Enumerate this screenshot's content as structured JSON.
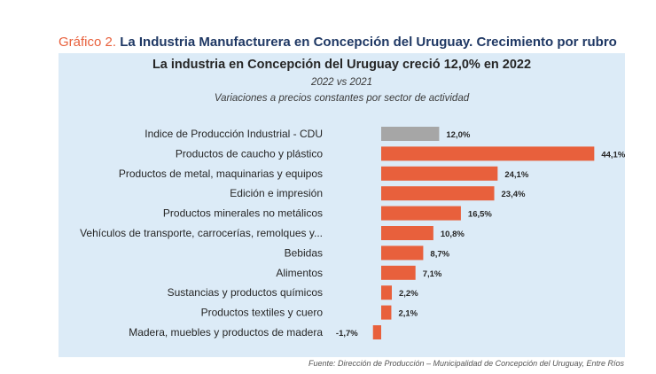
{
  "heading": {
    "prefix": "Gráfico 2.",
    "text": "La Industria Manufacturera en Concepción del Uruguay. Crecimiento por rubro"
  },
  "source": "Fuente: Dirección de Producción – Municipalidad de Concepción del Uruguay, Entre Ríos",
  "colors": {
    "accent": "#e8603c",
    "total": "#a6a6a6",
    "panel": "#dcebf7",
    "heading": "#1f3864"
  },
  "chart_data": {
    "type": "bar",
    "orientation": "horizontal",
    "title": "La industria en Concepción del Uruguay creció 12,0% en 2022",
    "subtitle": "2022 vs 2021",
    "subtitle2": "Variaciones a precios constantes por sector de actividad",
    "categories": [
      "Indice de Producción Industrial - CDU",
      "Productos de caucho y plástico",
      "Productos de metal, maquinarias y equipos",
      "Edición e impresión",
      "Productos minerales no metálicos",
      "Vehículos de transporte, carrocerías, remolques y...",
      "Bebidas",
      "Alimentos",
      "Sustancias y productos químicos",
      "Productos textiles y cuero",
      "Madera, muebles y productos de madera"
    ],
    "values": [
      12.0,
      44.1,
      24.1,
      23.4,
      16.5,
      10.8,
      8.7,
      7.1,
      2.2,
      2.1,
      -1.7
    ],
    "value_labels": [
      "12,0%",
      "44,1%",
      "24,1%",
      "23,4%",
      "16,5%",
      "10,8%",
      "8,7%",
      "7,1%",
      "2,2%",
      "2,1%",
      "-1,7%"
    ],
    "bar_colors": [
      "#a6a6a6",
      "#e8603c",
      "#e8603c",
      "#e8603c",
      "#e8603c",
      "#e8603c",
      "#e8603c",
      "#e8603c",
      "#e8603c",
      "#e8603c",
      "#e8603c"
    ],
    "xlabel": "",
    "ylabel": "",
    "grid": false,
    "legend": "none"
  }
}
